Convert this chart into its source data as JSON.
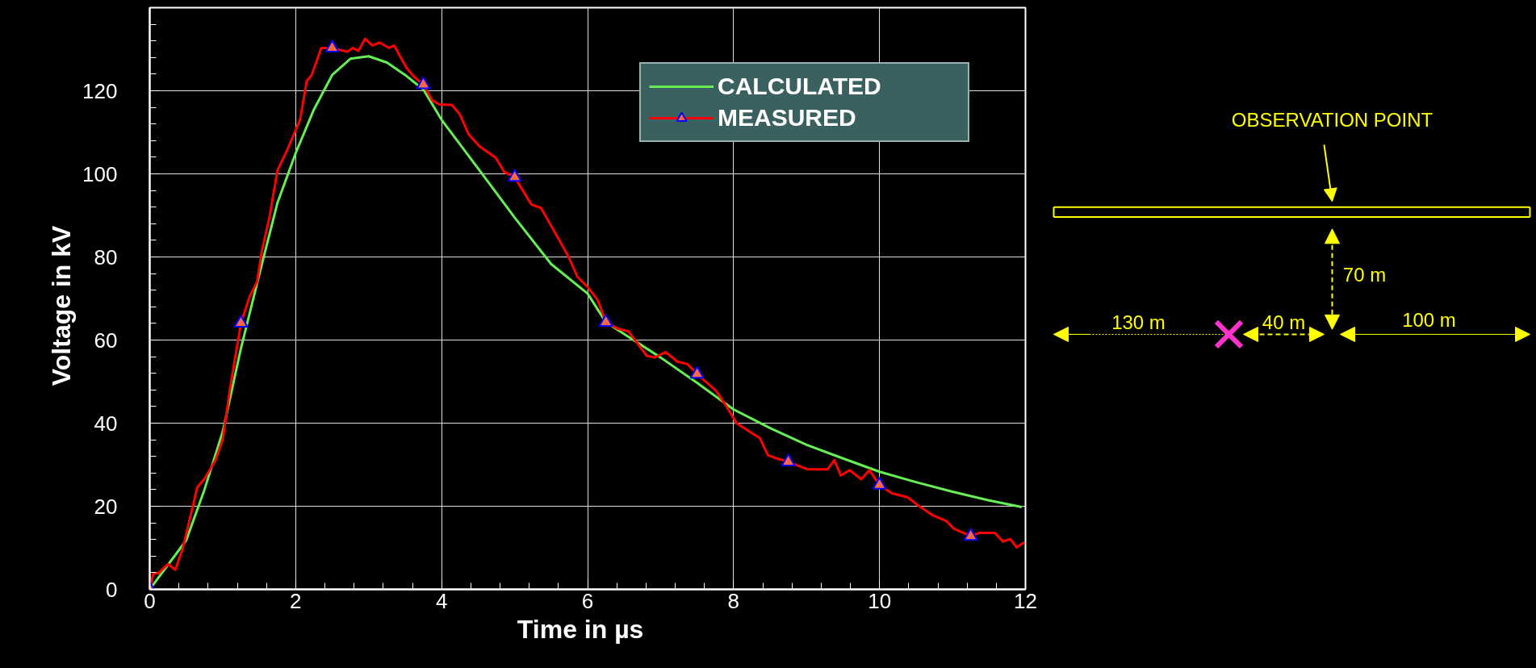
{
  "chart_data": {
    "type": "line",
    "xlabel": "Time  in  µs",
    "ylabel": "Voltage  in  kV",
    "xlim": [
      0,
      12
    ],
    "ylim": [
      0,
      140
    ],
    "xticks": [
      0,
      2,
      4,
      6,
      8,
      10,
      12
    ],
    "yticks": [
      0,
      20,
      40,
      60,
      80,
      100,
      120
    ],
    "grid": true,
    "legend": "top",
    "series": [
      {
        "name": "CALCULATED",
        "color": "#66ee55",
        "x": [
          0,
          0.5,
          0.75,
          1.0,
          1.25,
          1.5,
          1.75,
          2.0,
          2.25,
          2.5,
          2.75,
          3.0,
          3.25,
          3.5,
          3.75,
          4.0,
          4.5,
          5.0,
          5.5,
          6.0,
          6.25,
          7.0,
          7.5,
          8.0,
          8.5,
          9.0,
          9.5,
          10.0,
          10.5,
          11.0,
          11.5,
          11.95
        ],
        "values": [
          0,
          11.8,
          24,
          37.9,
          58,
          75.7,
          93,
          105,
          115.5,
          123.8,
          127.7,
          128.3,
          126.8,
          123.8,
          120.3,
          113,
          101.3,
          89.5,
          78.3,
          71.2,
          64.3,
          55.8,
          49.7,
          43.3,
          38.8,
          34.8,
          31.5,
          28.3,
          25.8,
          23.5,
          21.4,
          19.8
        ]
      },
      {
        "name": "MEASURED",
        "color": "#ff0000",
        "x": [
          0,
          0.05,
          0.12,
          0.25,
          0.35,
          0.45,
          0.55,
          0.65,
          0.75,
          0.9,
          1.0,
          1.1,
          1.25,
          1.37,
          1.47,
          1.54,
          1.64,
          1.75,
          1.89,
          2.06,
          2.15,
          2.22,
          2.35,
          2.5,
          2.71,
          2.78,
          2.86,
          2.95,
          3.05,
          3.15,
          3.28,
          3.35,
          3.42,
          3.52,
          3.62,
          3.75,
          3.87,
          3.97,
          4.14,
          4.25,
          4.37,
          4.52,
          4.74,
          4.86,
          5.0,
          5.23,
          5.36,
          5.53,
          5.74,
          5.86,
          6.0,
          6.14,
          6.25,
          6.42,
          6.56,
          6.81,
          6.92,
          7.07,
          7.23,
          7.37,
          7.5,
          7.76,
          7.9,
          8.04,
          8.24,
          8.36,
          8.47,
          8.59,
          8.75,
          9.01,
          9.29,
          9.38,
          9.47,
          9.59,
          9.75,
          9.86,
          10.0,
          10.17,
          10.38,
          10.53,
          10.72,
          10.91,
          11.02,
          11.25,
          11.37,
          11.58,
          11.69,
          11.79,
          11.88,
          11.98
        ],
        "values": [
          0,
          3.9,
          3.9,
          6.1,
          4.7,
          9.7,
          17,
          24.5,
          26.6,
          31,
          36,
          48.3,
          64.1,
          70.5,
          74,
          81.8,
          89.5,
          100.8,
          106,
          113,
          122.3,
          123.8,
          130.3,
          130.3,
          129.4,
          130.3,
          129.6,
          132.5,
          130.9,
          131.6,
          130.3,
          130.9,
          128.6,
          125.5,
          123.4,
          121.5,
          117.7,
          116.7,
          116.6,
          114.3,
          109.5,
          106.6,
          103.9,
          100.4,
          99.2,
          92.6,
          91.8,
          86.6,
          80,
          75.2,
          72.8,
          69.6,
          64.3,
          62.7,
          62.1,
          56.2,
          55.8,
          57.1,
          54.8,
          54.2,
          51.8,
          47.8,
          44.1,
          40,
          37.7,
          36.4,
          32.3,
          31.5,
          30.7,
          28.9,
          28.9,
          31.1,
          27.4,
          28.7,
          26.5,
          28.7,
          25.1,
          23.1,
          22.2,
          20.2,
          17.9,
          16.5,
          14.6,
          12.8,
          13.6,
          13.6,
          11.5,
          12.1,
          10.1,
          11.3
        ]
      },
      {
        "type": "scatter",
        "marker": "triangle",
        "color": "#ff6644",
        "x": [
          0,
          1.25,
          2.5,
          3.75,
          5.0,
          6.25,
          7.5,
          8.75,
          10.0,
          11.25
        ],
        "values": [
          0,
          64.1,
          130.3,
          121.5,
          99.2,
          64.3,
          51.8,
          30.7,
          25.1,
          12.8
        ]
      }
    ],
    "annotations": [
      "OBSERVATION POINT",
      "130 m",
      "40 m",
      "70 m",
      "100 m"
    ]
  }
}
